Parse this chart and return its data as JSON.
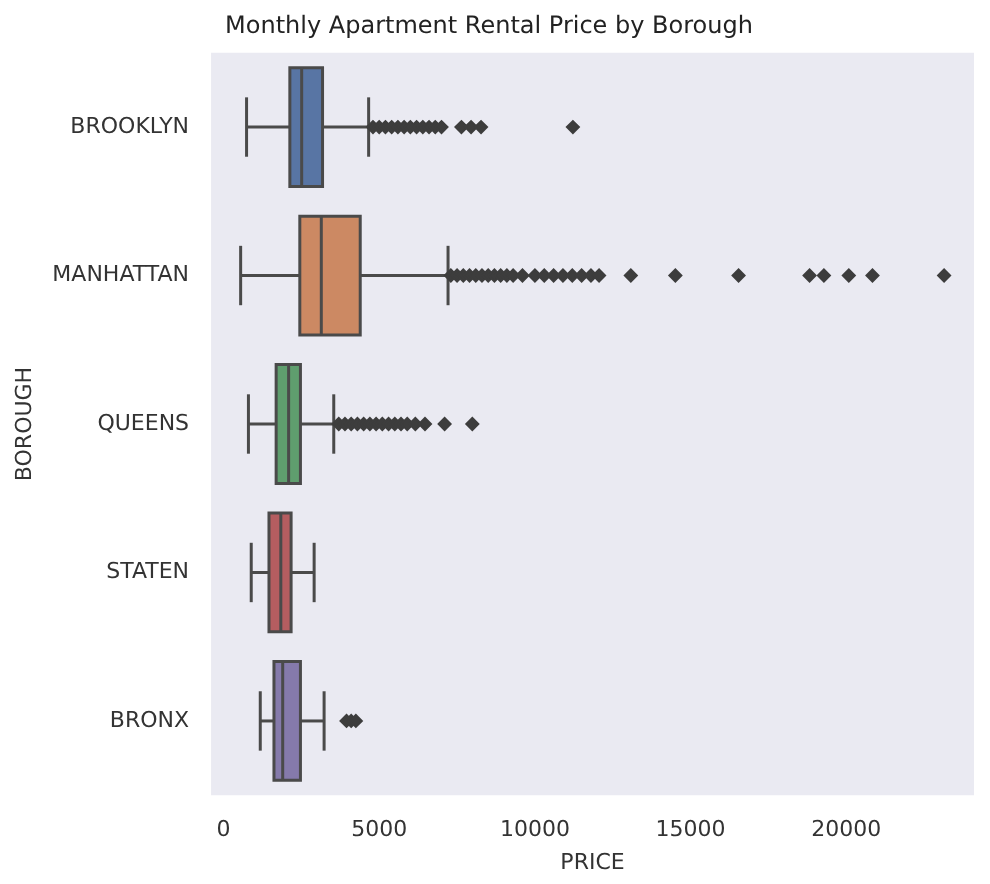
{
  "chart_data": {
    "type": "box",
    "orientation": "horizontal",
    "title": "Monthly Apartment Rental Price by Borough",
    "xlabel": "PRICE",
    "ylabel": "BOROUGH",
    "categories": [
      "BROOKLYN",
      "MANHATTAN",
      "QUEENS",
      "STATEN",
      "BRONX"
    ],
    "colors": [
      "#5875a4",
      "#cc8963",
      "#5f9e6e",
      "#b55d60",
      "#857aab"
    ],
    "boxes": [
      {
        "low": 740,
        "q1": 2130,
        "median": 2510,
        "q3": 3180,
        "high": 4660,
        "outliers": [
          4800,
          5000,
          5200,
          5400,
          5600,
          5800,
          6000,
          6200,
          6400,
          6600,
          6800,
          7000,
          7640,
          7950,
          8270,
          11220
        ]
      },
      {
        "low": 550,
        "q1": 2450,
        "median": 3140,
        "q3": 4390,
        "high": 7210,
        "outliers": [
          7300,
          7500,
          7700,
          7900,
          8100,
          8300,
          8500,
          8700,
          8900,
          9100,
          9300,
          9600,
          10000,
          10300,
          10600,
          10900,
          11200,
          11500,
          11800,
          12060,
          13080,
          14510,
          16540,
          18820,
          19280,
          20080,
          20840,
          23140
        ]
      },
      {
        "low": 800,
        "q1": 1690,
        "median": 2090,
        "q3": 2470,
        "high": 3540,
        "outliers": [
          3700,
          3900,
          4100,
          4300,
          4500,
          4700,
          4900,
          5100,
          5300,
          5500,
          5700,
          5900,
          6160,
          6470,
          7100,
          7990
        ]
      },
      {
        "low": 890,
        "q1": 1460,
        "median": 1840,
        "q3": 2170,
        "high": 2910
      },
      {
        "low": 1180,
        "q1": 1620,
        "median": 1900,
        "q3": 2470,
        "high": 3230,
        "outliers": [
          3950,
          4100,
          4250
        ]
      }
    ],
    "xlim": [
      -400,
      24100
    ],
    "xticks": [
      0,
      5000,
      10000,
      15000,
      20000
    ],
    "grid": false
  }
}
